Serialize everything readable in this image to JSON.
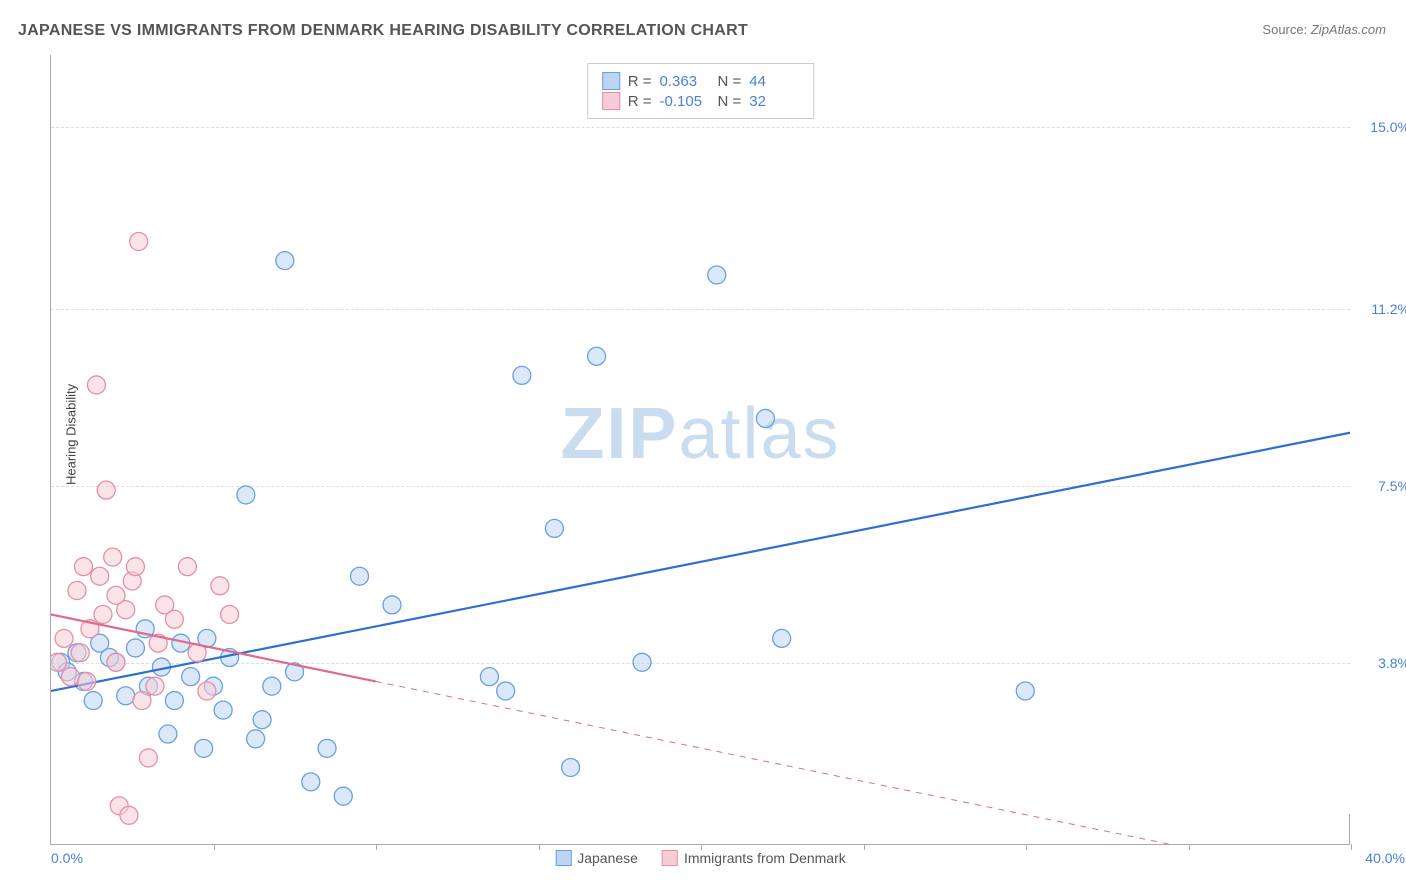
{
  "title": "JAPANESE VS IMMIGRANTS FROM DENMARK HEARING DISABILITY CORRELATION CHART",
  "source": {
    "label": "Source:",
    "name": "ZipAtlas.com"
  },
  "watermark": {
    "prefix": "ZIP",
    "suffix": "atlas"
  },
  "chart": {
    "type": "scatter",
    "ylabel": "Hearing Disability",
    "xlim": [
      0.0,
      40.0
    ],
    "ylim": [
      0.0,
      16.5
    ],
    "yticks": [
      {
        "value": 3.8,
        "label": "3.8%"
      },
      {
        "value": 7.5,
        "label": "7.5%"
      },
      {
        "value": 11.2,
        "label": "11.2%"
      },
      {
        "value": 15.0,
        "label": "15.0%"
      }
    ],
    "xmin_label": "0.0%",
    "xmax_label": "40.0%",
    "xticks": [
      5,
      10,
      15,
      20,
      25,
      30,
      35,
      40
    ],
    "background_color": "#ffffff",
    "grid_color": "#dddddd",
    "axis_color": "#aaaaaa",
    "tick_color": "#4a80d8",
    "marker_radius": 9,
    "marker_opacity": 0.55,
    "line_width": 2.2,
    "series": [
      {
        "name": "Japanese",
        "color_fill": "#bcd5f2",
        "color_stroke": "#6aa0e0",
        "line_color": "#2f6fd0",
        "R": "0.363",
        "N": "44",
        "regression": {
          "x1": 0,
          "y1": 3.2,
          "x2": 40,
          "y2": 8.6,
          "dashed_after_x": 40
        },
        "points": [
          {
            "x": 0.3,
            "y": 3.8
          },
          {
            "x": 0.5,
            "y": 3.6
          },
          {
            "x": 0.8,
            "y": 4.0
          },
          {
            "x": 1.0,
            "y": 3.4
          },
          {
            "x": 1.3,
            "y": 3.0
          },
          {
            "x": 1.5,
            "y": 4.2
          },
          {
            "x": 2.0,
            "y": 3.8
          },
          {
            "x": 2.3,
            "y": 3.1
          },
          {
            "x": 2.6,
            "y": 4.1
          },
          {
            "x": 3.0,
            "y": 3.3
          },
          {
            "x": 3.4,
            "y": 3.7
          },
          {
            "x": 3.8,
            "y": 3.0
          },
          {
            "x": 4.0,
            "y": 4.2
          },
          {
            "x": 4.3,
            "y": 3.5
          },
          {
            "x": 4.7,
            "y": 2.0
          },
          {
            "x": 5.0,
            "y": 3.3
          },
          {
            "x": 5.3,
            "y": 2.8
          },
          {
            "x": 5.5,
            "y": 3.9
          },
          {
            "x": 6.0,
            "y": 7.3
          },
          {
            "x": 6.3,
            "y": 2.2
          },
          {
            "x": 6.8,
            "y": 3.3
          },
          {
            "x": 7.2,
            "y": 12.2
          },
          {
            "x": 7.5,
            "y": 3.6
          },
          {
            "x": 8.0,
            "y": 1.3
          },
          {
            "x": 8.5,
            "y": 2.0
          },
          {
            "x": 9.0,
            "y": 1.0
          },
          {
            "x": 9.5,
            "y": 5.6
          },
          {
            "x": 10.5,
            "y": 5.0
          },
          {
            "x": 13.5,
            "y": 3.5
          },
          {
            "x": 14.0,
            "y": 3.2
          },
          {
            "x": 14.5,
            "y": 9.8
          },
          {
            "x": 15.5,
            "y": 6.6
          },
          {
            "x": 16.0,
            "y": 1.6
          },
          {
            "x": 16.8,
            "y": 10.2
          },
          {
            "x": 18.2,
            "y": 3.8
          },
          {
            "x": 20.5,
            "y": 11.9
          },
          {
            "x": 22.0,
            "y": 8.9
          },
          {
            "x": 22.5,
            "y": 4.3
          },
          {
            "x": 30.0,
            "y": 3.2
          },
          {
            "x": 4.8,
            "y": 4.3
          },
          {
            "x": 2.9,
            "y": 4.5
          },
          {
            "x": 1.8,
            "y": 3.9
          },
          {
            "x": 6.5,
            "y": 2.6
          },
          {
            "x": 3.6,
            "y": 2.3
          }
        ]
      },
      {
        "name": "Immigrants from Denmark",
        "color_fill": "#f6cdd6",
        "color_stroke": "#e78fa5",
        "line_color": "#e06a8a",
        "R": "-0.105",
        "N": "32",
        "regression": {
          "x1": 0,
          "y1": 4.8,
          "x2": 10,
          "y2": 3.4,
          "dashed_after_x": 10,
          "x2_dash": 38,
          "y2_dash": -0.5
        },
        "points": [
          {
            "x": 0.2,
            "y": 3.8
          },
          {
            "x": 0.4,
            "y": 4.3
          },
          {
            "x": 0.6,
            "y": 3.5
          },
          {
            "x": 0.8,
            "y": 5.3
          },
          {
            "x": 1.0,
            "y": 5.8
          },
          {
            "x": 1.2,
            "y": 4.5
          },
          {
            "x": 1.4,
            "y": 9.6
          },
          {
            "x": 1.5,
            "y": 5.6
          },
          {
            "x": 1.7,
            "y": 7.4
          },
          {
            "x": 1.9,
            "y": 6.0
          },
          {
            "x": 2.0,
            "y": 3.8
          },
          {
            "x": 2.3,
            "y": 4.9
          },
          {
            "x": 2.5,
            "y": 5.5
          },
          {
            "x": 2.7,
            "y": 12.6
          },
          {
            "x": 2.8,
            "y": 3.0
          },
          {
            "x": 3.0,
            "y": 1.8
          },
          {
            "x": 3.2,
            "y": 3.3
          },
          {
            "x": 3.5,
            "y": 5.0
          },
          {
            "x": 3.8,
            "y": 4.7
          },
          {
            "x": 4.2,
            "y": 5.8
          },
          {
            "x": 4.5,
            "y": 4.0
          },
          {
            "x": 4.8,
            "y": 3.2
          },
          {
            "x": 5.2,
            "y": 5.4
          },
          {
            "x": 5.5,
            "y": 4.8
          },
          {
            "x": 2.1,
            "y": 0.8
          },
          {
            "x": 2.4,
            "y": 0.6
          },
          {
            "x": 1.6,
            "y": 4.8
          },
          {
            "x": 0.9,
            "y": 4.0
          },
          {
            "x": 1.1,
            "y": 3.4
          },
          {
            "x": 2.0,
            "y": 5.2
          },
          {
            "x": 2.6,
            "y": 5.8
          },
          {
            "x": 3.3,
            "y": 4.2
          }
        ]
      }
    ],
    "legend_bottom": [
      {
        "label": "Japanese",
        "fill": "#bcd5f2",
        "stroke": "#6aa0e0"
      },
      {
        "label": "Immigrants from Denmark",
        "fill": "#f6cdd6",
        "stroke": "#e78fa5"
      }
    ]
  }
}
